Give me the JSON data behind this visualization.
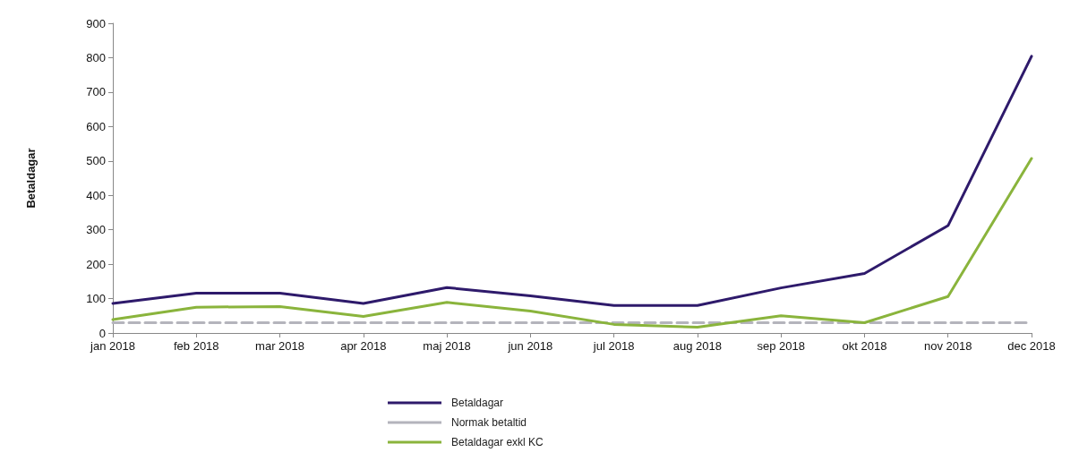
{
  "chart_data": {
    "type": "line",
    "ylabel": "Betaldagar",
    "categories": [
      "jan 2018",
      "feb 2018",
      "mar 2018",
      "apr 2018",
      "maj 2018",
      "jun 2018",
      "jul 2018",
      "aug 2018",
      "sep 2018",
      "okt 2018",
      "nov 2018",
      "dec 2018"
    ],
    "series": [
      {
        "name": "Betaldagar",
        "color": "#2e1a6b",
        "values": [
          86,
          116,
          116,
          86,
          132,
          108,
          80,
          80,
          131,
          173,
          312,
          804
        ]
      },
      {
        "name": "Normak betaltid",
        "color": "#b4b4bc",
        "line_style": "dashed",
        "values": [
          30,
          30,
          30,
          30,
          30,
          30,
          30,
          30,
          30,
          30,
          30,
          30
        ]
      },
      {
        "name": "Betaldagar exkl KC",
        "color": "#8ab43c",
        "values": [
          39,
          75,
          77,
          48,
          89,
          64,
          25,
          17,
          50,
          30,
          106,
          507
        ]
      }
    ],
    "ylim": [
      0,
      900
    ],
    "yticks": [
      0,
      100,
      200,
      300,
      400,
      500,
      600,
      700,
      800,
      900
    ],
    "grid": false,
    "legend": "bottom",
    "marker": "none",
    "line_style": "solid"
  }
}
